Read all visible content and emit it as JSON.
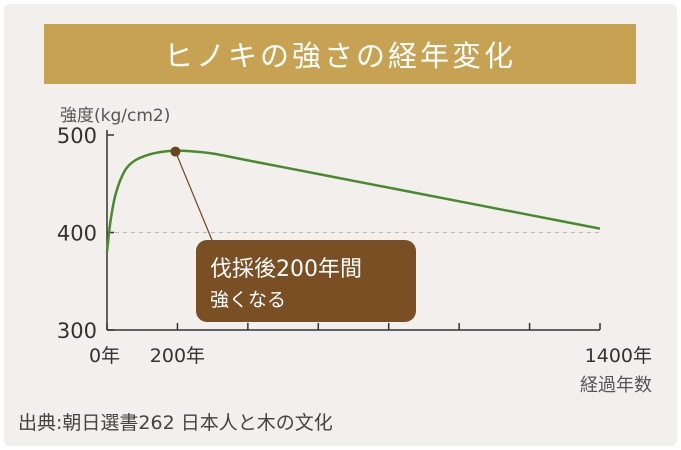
{
  "title": "ヒノキの強さの経年変化",
  "source": "出典:朝日選書262 日本人と木の文化",
  "colors": {
    "background": "#f2efec",
    "banner": "#c6a252",
    "curve": "#4a8a2e",
    "callout": "#7a4f24",
    "axis": "#333333",
    "reference_line": "#bbbbbb"
  },
  "chart_data": {
    "type": "line",
    "ylabel": "強度(kg/cm2)",
    "xlabel": "経過年数",
    "xlim": [
      0,
      1400
    ],
    "ylim": [
      300,
      500
    ],
    "yticks": [
      {
        "value": 300,
        "label": "300"
      },
      {
        "value": 400,
        "label": "400"
      },
      {
        "value": 500,
        "label": "500"
      }
    ],
    "xtick_values": [
      0,
      200,
      400,
      600,
      800,
      1000,
      1200,
      1400
    ],
    "xtick_labels": [
      {
        "value": 0,
        "label": "0年"
      },
      {
        "value": 200,
        "label": "200年"
      },
      {
        "value": 1400,
        "label": "1400年"
      }
    ],
    "reference_line_y": 400,
    "series": [
      {
        "x": [
          0,
          10,
          25,
          50,
          80,
          120,
          160,
          200,
          250,
          300,
          400,
          600,
          800,
          1000,
          1200,
          1400
        ],
        "y": [
          380,
          412,
          440,
          463,
          474,
          480,
          483,
          484,
          483,
          481,
          474,
          460,
          446,
          432,
          418,
          404
        ]
      }
    ],
    "annotation": {
      "point_x": 200,
      "point_y": 483,
      "line1": "伐採後200年間",
      "line2": "強くなる"
    }
  }
}
